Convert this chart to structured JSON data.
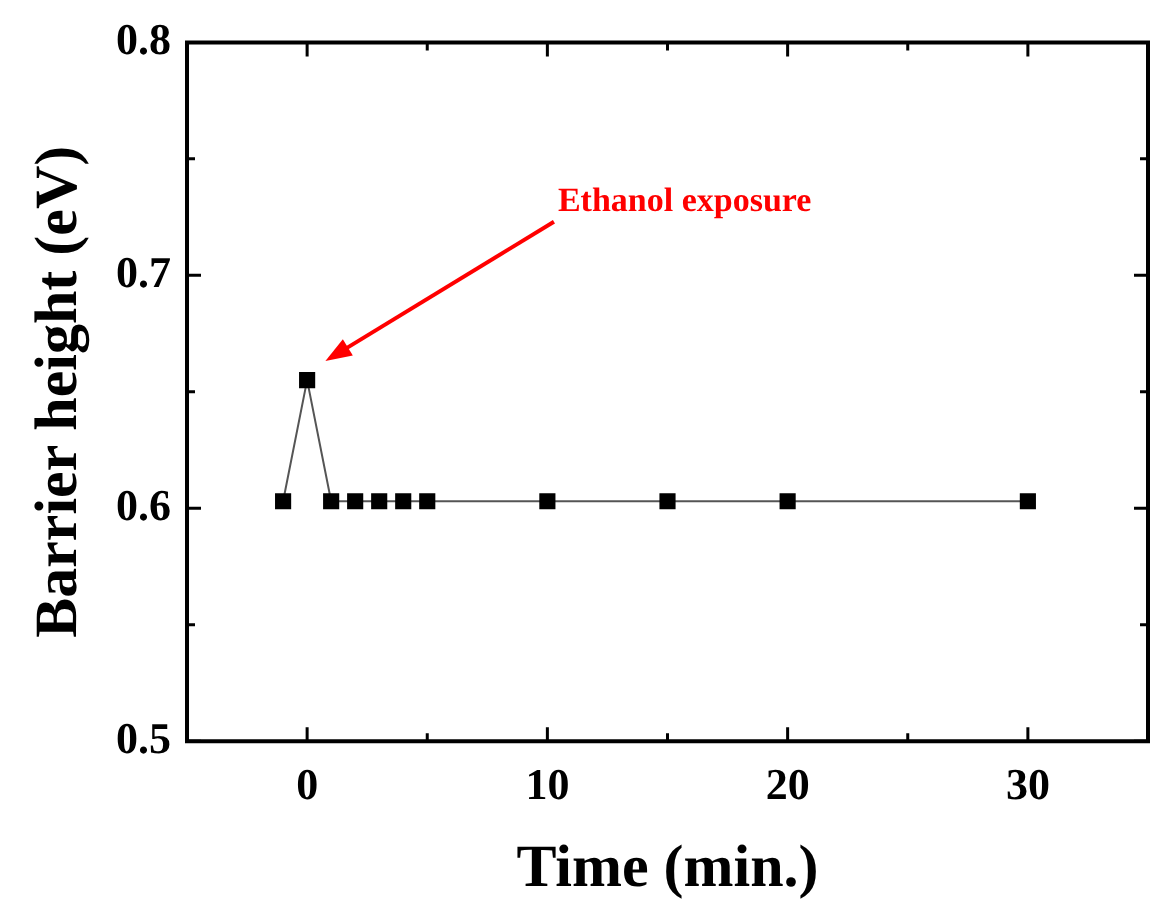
{
  "chart_data": {
    "type": "line",
    "xlabel": "Time (min.)",
    "ylabel": "Barrier height (eV)",
    "x": [
      -1,
      0,
      1,
      2,
      3,
      4,
      5,
      10,
      15,
      20,
      30
    ],
    "series": [
      {
        "color": "#000000",
        "values": [
          0.603,
          0.655,
          0.603,
          0.603,
          0.603,
          0.603,
          0.603,
          0.603,
          0.603,
          0.603,
          0.603
        ]
      }
    ],
    "xlim": [
      -5,
      35
    ],
    "xticks": [
      0,
      {
        "value": 5,
        "label": null
      },
      10,
      {
        "value": 15,
        "label": null
      },
      20,
      {
        "value": 25,
        "label": null
      },
      30
    ],
    "ylim": [
      0.5,
      0.8
    ],
    "yticks": [
      0.5,
      {
        "value": 0.55,
        "label": null
      },
      0.6,
      {
        "value": 0.65,
        "label": null
      },
      0.7,
      {
        "value": 0.75,
        "label": null
      },
      0.8
    ],
    "marker": "square",
    "line_style": "solid",
    "grid": false,
    "legend": false,
    "annotations": [
      "Ethanol exposure"
    ]
  }
}
